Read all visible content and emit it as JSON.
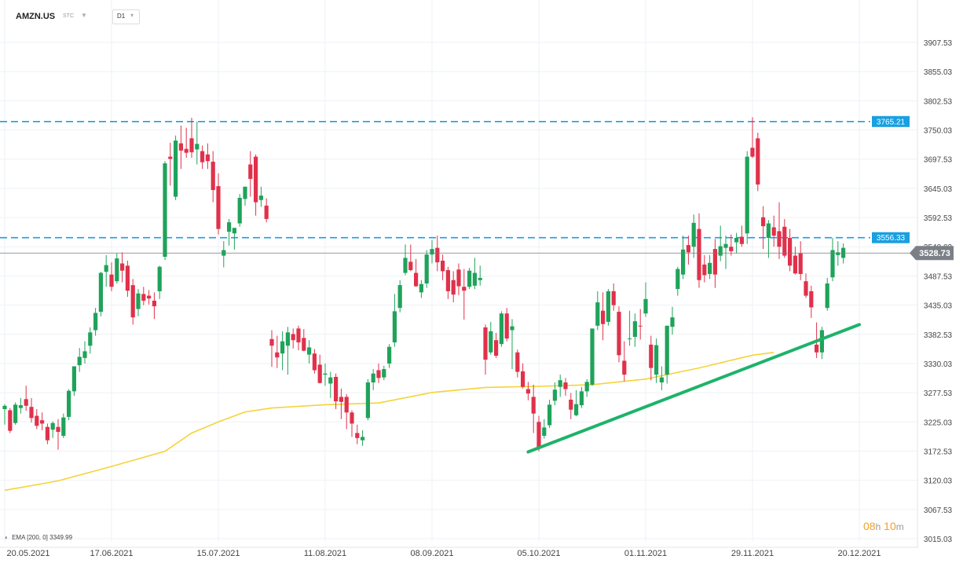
{
  "header": {
    "symbol": "AMZN.US",
    "symbol_type": "STC",
    "timeframe": "D1"
  },
  "indicator_legend": {
    "name": "EMA",
    "params": "[200, 0]",
    "value": "3349.99"
  },
  "countdown": {
    "hours": "08",
    "h_unit": "h",
    "minutes": "10",
    "m_unit": "m"
  },
  "colors": {
    "bull": "#1fa35a",
    "bear": "#e0314b",
    "ema": "#f5d338",
    "trendline": "#1db36a",
    "level": "#1a9fe0",
    "price_line": "#777777",
    "grid": "#eef1f4"
  },
  "chart_data": {
    "type": "candlestick",
    "y_range": [
      3015.03,
      3930
    ],
    "y_ticks": [
      "3907.53",
      "3855.03",
      "3802.53",
      "3750.03",
      "3697.53",
      "3645.03",
      "3592.53",
      "3540.03",
      "3487.53",
      "3435.03",
      "3382.53",
      "3330.03",
      "3277.53",
      "3225.03",
      "3172.53",
      "3120.03",
      "3067.53",
      "3015.03"
    ],
    "x_ticks": [
      "20.05.2021",
      "17.06.2021",
      "15.07.2021",
      "11.08.2021",
      "08.09.2021",
      "05.10.2021",
      "01.11.2021",
      "29.11.2021",
      "20.12.2021"
    ],
    "x_ticks_index": [
      0,
      20,
      40,
      60,
      80,
      100,
      120,
      140,
      160
    ],
    "current_price": {
      "label": "3528.73",
      "value": 3528.73
    },
    "levels": [
      {
        "label": "3765.21",
        "value": 3765.21
      },
      {
        "label": "3556.33",
        "value": 3556.33
      }
    ],
    "trendline": {
      "from": {
        "index": 98,
        "value": 3171
      },
      "to": {
        "index": 160,
        "value": 3400
      }
    },
    "ema_200": [
      {
        "i": 0,
        "v": 3102
      },
      {
        "i": 10,
        "v": 3119
      },
      {
        "i": 20,
        "v": 3145
      },
      {
        "i": 30,
        "v": 3172
      },
      {
        "i": 35,
        "v": 3205
      },
      {
        "i": 40,
        "v": 3225
      },
      {
        "i": 45,
        "v": 3243
      },
      {
        "i": 50,
        "v": 3250
      },
      {
        "i": 60,
        "v": 3256
      },
      {
        "i": 70,
        "v": 3259
      },
      {
        "i": 80,
        "v": 3278
      },
      {
        "i": 90,
        "v": 3287
      },
      {
        "i": 100,
        "v": 3289
      },
      {
        "i": 110,
        "v": 3292
      },
      {
        "i": 120,
        "v": 3302
      },
      {
        "i": 130,
        "v": 3322
      },
      {
        "i": 140,
        "v": 3345
      },
      {
        "i": 144,
        "v": 3350
      }
    ],
    "candles": [
      {
        "o": 3248,
        "h": 3257,
        "l": 3220,
        "c": 3254
      },
      {
        "o": 3246,
        "h": 3250,
        "l": 3205,
        "c": 3209
      },
      {
        "o": 3223,
        "h": 3260,
        "l": 3220,
        "c": 3256
      },
      {
        "o": 3250,
        "h": 3268,
        "l": 3240,
        "c": 3255
      },
      {
        "o": 3266,
        "h": 3290,
        "l": 3245,
        "c": 3254
      },
      {
        "o": 3252,
        "h": 3268,
        "l": 3224,
        "c": 3232
      },
      {
        "o": 3236,
        "h": 3248,
        "l": 3212,
        "c": 3218
      },
      {
        "o": 3228,
        "h": 3242,
        "l": 3210,
        "c": 3222
      },
      {
        "o": 3216,
        "h": 3222,
        "l": 3185,
        "c": 3192
      },
      {
        "o": 3211,
        "h": 3226,
        "l": 3196,
        "c": 3223
      },
      {
        "o": 3216,
        "h": 3230,
        "l": 3175,
        "c": 3207
      },
      {
        "o": 3200,
        "h": 3240,
        "l": 3196,
        "c": 3233
      },
      {
        "o": 3234,
        "h": 3284,
        "l": 3228,
        "c": 3281
      },
      {
        "o": 3280,
        "h": 3320,
        "l": 3272,
        "c": 3325
      },
      {
        "o": 3327,
        "h": 3358,
        "l": 3315,
        "c": 3342
      },
      {
        "o": 3340,
        "h": 3370,
        "l": 3330,
        "c": 3352
      },
      {
        "o": 3362,
        "h": 3395,
        "l": 3348,
        "c": 3386
      },
      {
        "o": 3390,
        "h": 3430,
        "l": 3380,
        "c": 3421
      },
      {
        "o": 3423,
        "h": 3495,
        "l": 3415,
        "c": 3493
      },
      {
        "o": 3495,
        "h": 3525,
        "l": 3468,
        "c": 3507
      },
      {
        "o": 3490,
        "h": 3512,
        "l": 3460,
        "c": 3468
      },
      {
        "o": 3478,
        "h": 3528,
        "l": 3474,
        "c": 3519
      },
      {
        "o": 3510,
        "h": 3530,
        "l": 3476,
        "c": 3497
      },
      {
        "o": 3506,
        "h": 3515,
        "l": 3450,
        "c": 3461
      },
      {
        "o": 3471,
        "h": 3482,
        "l": 3400,
        "c": 3413
      },
      {
        "o": 3428,
        "h": 3464,
        "l": 3415,
        "c": 3456
      },
      {
        "o": 3455,
        "h": 3468,
        "l": 3435,
        "c": 3443
      },
      {
        "o": 3452,
        "h": 3462,
        "l": 3436,
        "c": 3447
      },
      {
        "o": 3443,
        "h": 3458,
        "l": 3410,
        "c": 3433
      },
      {
        "o": 3460,
        "h": 3506,
        "l": 3446,
        "c": 3504
      },
      {
        "o": 3522,
        "h": 3694,
        "l": 3516,
        "c": 3690
      },
      {
        "o": 3702,
        "h": 3727,
        "l": 3650,
        "c": 3698
      },
      {
        "o": 3630,
        "h": 3740,
        "l": 3624,
        "c": 3731
      },
      {
        "o": 3726,
        "h": 3758,
        "l": 3680,
        "c": 3713
      },
      {
        "o": 3716,
        "h": 3754,
        "l": 3700,
        "c": 3709
      },
      {
        "o": 3735,
        "h": 3772,
        "l": 3700,
        "c": 3710
      },
      {
        "o": 3715,
        "h": 3765,
        "l": 3688,
        "c": 3725
      },
      {
        "o": 3712,
        "h": 3722,
        "l": 3680,
        "c": 3692
      },
      {
        "o": 3706,
        "h": 3726,
        "l": 3680,
        "c": 3694
      },
      {
        "o": 3693,
        "h": 3712,
        "l": 3620,
        "c": 3642
      },
      {
        "o": 3649,
        "h": 3672,
        "l": 3562,
        "c": 3572
      },
      {
        "o": 3524,
        "h": 3550,
        "l": 3503,
        "c": 3534
      },
      {
        "o": 3567,
        "h": 3590,
        "l": 3542,
        "c": 3584
      },
      {
        "o": 3564,
        "h": 3570,
        "l": 3535,
        "c": 3574
      },
      {
        "o": 3582,
        "h": 3635,
        "l": 3576,
        "c": 3628
      },
      {
        "o": 3626,
        "h": 3648,
        "l": 3614,
        "c": 3648
      },
      {
        "o": 3688,
        "h": 3712,
        "l": 3630,
        "c": 3662
      },
      {
        "o": 3702,
        "h": 3706,
        "l": 3596,
        "c": 3620
      },
      {
        "o": 3624,
        "h": 3648,
        "l": 3612,
        "c": 3632
      },
      {
        "o": 3614,
        "h": 3627,
        "l": 3584,
        "c": 3590
      },
      {
        "o": 3374,
        "h": 3390,
        "l": 3324,
        "c": 3362
      },
      {
        "o": 3350,
        "h": 3380,
        "l": 3322,
        "c": 3341
      },
      {
        "o": 3348,
        "h": 3388,
        "l": 3318,
        "c": 3370
      },
      {
        "o": 3362,
        "h": 3396,
        "l": 3310,
        "c": 3386
      },
      {
        "o": 3383,
        "h": 3393,
        "l": 3357,
        "c": 3372
      },
      {
        "o": 3393,
        "h": 3398,
        "l": 3354,
        "c": 3368
      },
      {
        "o": 3376,
        "h": 3392,
        "l": 3352,
        "c": 3353
      },
      {
        "o": 3346,
        "h": 3372,
        "l": 3330,
        "c": 3359
      },
      {
        "o": 3348,
        "h": 3356,
        "l": 3312,
        "c": 3318
      },
      {
        "o": 3328,
        "h": 3346,
        "l": 3294,
        "c": 3295
      },
      {
        "o": 3310,
        "h": 3330,
        "l": 3290,
        "c": 3312
      },
      {
        "o": 3294,
        "h": 3315,
        "l": 3268,
        "c": 3305
      },
      {
        "o": 3306,
        "h": 3312,
        "l": 3248,
        "c": 3262
      },
      {
        "o": 3270,
        "h": 3285,
        "l": 3230,
        "c": 3261
      },
      {
        "o": 3270,
        "h": 3275,
        "l": 3212,
        "c": 3242
      },
      {
        "o": 3242,
        "h": 3246,
        "l": 3198,
        "c": 3222
      },
      {
        "o": 3205,
        "h": 3220,
        "l": 3185,
        "c": 3196
      },
      {
        "o": 3192,
        "h": 3210,
        "l": 3182,
        "c": 3198
      },
      {
        "o": 3232,
        "h": 3302,
        "l": 3228,
        "c": 3296
      },
      {
        "o": 3296,
        "h": 3320,
        "l": 3282,
        "c": 3312
      },
      {
        "o": 3318,
        "h": 3330,
        "l": 3295,
        "c": 3304
      },
      {
        "o": 3305,
        "h": 3326,
        "l": 3300,
        "c": 3320
      },
      {
        "o": 3330,
        "h": 3365,
        "l": 3322,
        "c": 3360
      },
      {
        "o": 3368,
        "h": 3455,
        "l": 3360,
        "c": 3424
      },
      {
        "o": 3430,
        "h": 3480,
        "l": 3422,
        "c": 3471
      },
      {
        "o": 3493,
        "h": 3544,
        "l": 3489,
        "c": 3520
      },
      {
        "o": 3513,
        "h": 3544,
        "l": 3496,
        "c": 3498
      },
      {
        "o": 3493,
        "h": 3518,
        "l": 3468,
        "c": 3469
      },
      {
        "o": 3458,
        "h": 3480,
        "l": 3448,
        "c": 3473
      },
      {
        "o": 3474,
        "h": 3534,
        "l": 3466,
        "c": 3526
      },
      {
        "o": 3526,
        "h": 3552,
        "l": 3510,
        "c": 3536
      },
      {
        "o": 3538,
        "h": 3560,
        "l": 3496,
        "c": 3512
      },
      {
        "o": 3515,
        "h": 3526,
        "l": 3480,
        "c": 3496
      },
      {
        "o": 3498,
        "h": 3504,
        "l": 3446,
        "c": 3460
      },
      {
        "o": 3480,
        "h": 3496,
        "l": 3440,
        "c": 3454
      },
      {
        "o": 3499,
        "h": 3510,
        "l": 3453,
        "c": 3469
      },
      {
        "o": 3468,
        "h": 3500,
        "l": 3409,
        "c": 3461
      },
      {
        "o": 3468,
        "h": 3502,
        "l": 3464,
        "c": 3497
      },
      {
        "o": 3470,
        "h": 3520,
        "l": 3464,
        "c": 3493
      },
      {
        "o": 3480,
        "h": 3506,
        "l": 3470,
        "c": 3484
      },
      {
        "o": 3395,
        "h": 3400,
        "l": 3310,
        "c": 3337
      },
      {
        "o": 3350,
        "h": 3405,
        "l": 3346,
        "c": 3388
      },
      {
        "o": 3372,
        "h": 3385,
        "l": 3340,
        "c": 3344
      },
      {
        "o": 3365,
        "h": 3424,
        "l": 3360,
        "c": 3420
      },
      {
        "o": 3420,
        "h": 3430,
        "l": 3370,
        "c": 3375
      },
      {
        "o": 3390,
        "h": 3410,
        "l": 3320,
        "c": 3397
      },
      {
        "o": 3350,
        "h": 3355,
        "l": 3305,
        "c": 3315
      },
      {
        "o": 3316,
        "h": 3330,
        "l": 3285,
        "c": 3288
      },
      {
        "o": 3284,
        "h": 3297,
        "l": 3264,
        "c": 3276
      },
      {
        "o": 3270,
        "h": 3292,
        "l": 3205,
        "c": 3240
      },
      {
        "o": 3225,
        "h": 3236,
        "l": 3172,
        "c": 3178
      },
      {
        "o": 3200,
        "h": 3230,
        "l": 3195,
        "c": 3215
      },
      {
        "o": 3219,
        "h": 3265,
        "l": 3214,
        "c": 3256
      },
      {
        "o": 3263,
        "h": 3296,
        "l": 3255,
        "c": 3283
      },
      {
        "o": 3288,
        "h": 3310,
        "l": 3270,
        "c": 3300
      },
      {
        "o": 3296,
        "h": 3304,
        "l": 3272,
        "c": 3284
      },
      {
        "o": 3265,
        "h": 3277,
        "l": 3230,
        "c": 3247
      },
      {
        "o": 3237,
        "h": 3282,
        "l": 3235,
        "c": 3257
      },
      {
        "o": 3255,
        "h": 3288,
        "l": 3250,
        "c": 3280
      },
      {
        "o": 3280,
        "h": 3302,
        "l": 3270,
        "c": 3297
      },
      {
        "o": 3292,
        "h": 3390,
        "l": 3290,
        "c": 3393
      },
      {
        "o": 3398,
        "h": 3460,
        "l": 3390,
        "c": 3440
      },
      {
        "o": 3425,
        "h": 3458,
        "l": 3372,
        "c": 3401
      },
      {
        "o": 3405,
        "h": 3464,
        "l": 3398,
        "c": 3460
      },
      {
        "o": 3460,
        "h": 3474,
        "l": 3425,
        "c": 3435
      },
      {
        "o": 3423,
        "h": 3433,
        "l": 3332,
        "c": 3345
      },
      {
        "o": 3335,
        "h": 3370,
        "l": 3298,
        "c": 3310
      },
      {
        "o": 3374,
        "h": 3425,
        "l": 3362,
        "c": 3375
      },
      {
        "o": 3378,
        "h": 3420,
        "l": 3360,
        "c": 3406
      },
      {
        "o": 3398,
        "h": 3428,
        "l": 3373,
        "c": 3397
      },
      {
        "o": 3420,
        "h": 3476,
        "l": 3414,
        "c": 3446
      },
      {
        "o": 3364,
        "h": 3380,
        "l": 3300,
        "c": 3322
      },
      {
        "o": 3310,
        "h": 3375,
        "l": 3295,
        "c": 3363
      },
      {
        "o": 3296,
        "h": 3325,
        "l": 3282,
        "c": 3305
      },
      {
        "o": 3310,
        "h": 3398,
        "l": 3294,
        "c": 3398
      },
      {
        "o": 3396,
        "h": 3432,
        "l": 3382,
        "c": 3413
      },
      {
        "o": 3464,
        "h": 3504,
        "l": 3452,
        "c": 3500
      },
      {
        "o": 3490,
        "h": 3560,
        "l": 3482,
        "c": 3535
      },
      {
        "o": 3543,
        "h": 3560,
        "l": 3508,
        "c": 3530
      },
      {
        "o": 3540,
        "h": 3598,
        "l": 3520,
        "c": 3583
      },
      {
        "o": 3572,
        "h": 3600,
        "l": 3466,
        "c": 3480
      },
      {
        "o": 3508,
        "h": 3525,
        "l": 3476,
        "c": 3489
      },
      {
        "o": 3491,
        "h": 3525,
        "l": 3482,
        "c": 3511
      },
      {
        "o": 3536,
        "h": 3554,
        "l": 3466,
        "c": 3490
      },
      {
        "o": 3524,
        "h": 3578,
        "l": 3514,
        "c": 3541
      },
      {
        "o": 3538,
        "h": 3560,
        "l": 3500,
        "c": 3545
      },
      {
        "o": 3540,
        "h": 3562,
        "l": 3524,
        "c": 3532
      },
      {
        "o": 3548,
        "h": 3565,
        "l": 3528,
        "c": 3556
      },
      {
        "o": 3558,
        "h": 3578,
        "l": 3540,
        "c": 3545
      },
      {
        "o": 3564,
        "h": 3712,
        "l": 3545,
        "c": 3702
      },
      {
        "o": 3718,
        "h": 3773,
        "l": 3700,
        "c": 3702
      },
      {
        "o": 3735,
        "h": 3745,
        "l": 3640,
        "c": 3652
      },
      {
        "o": 3593,
        "h": 3613,
        "l": 3536,
        "c": 3577
      },
      {
        "o": 3556,
        "h": 3588,
        "l": 3520,
        "c": 3582
      },
      {
        "o": 3575,
        "h": 3596,
        "l": 3540,
        "c": 3560
      },
      {
        "o": 3568,
        "h": 3620,
        "l": 3518,
        "c": 3540
      },
      {
        "o": 3576,
        "h": 3590,
        "l": 3520,
        "c": 3524
      },
      {
        "o": 3556,
        "h": 3572,
        "l": 3496,
        "c": 3506
      },
      {
        "o": 3524,
        "h": 3540,
        "l": 3490,
        "c": 3492
      },
      {
        "o": 3528,
        "h": 3550,
        "l": 3480,
        "c": 3491
      },
      {
        "o": 3478,
        "h": 3492,
        "l": 3448,
        "c": 3452
      },
      {
        "o": 3460,
        "h": 3470,
        "l": 3412,
        "c": 3431
      },
      {
        "o": 3364,
        "h": 3404,
        "l": 3340,
        "c": 3350
      },
      {
        "o": 3350,
        "h": 3396,
        "l": 3338,
        "c": 3390
      },
      {
        "o": 3430,
        "h": 3484,
        "l": 3425,
        "c": 3474
      },
      {
        "o": 3485,
        "h": 3556,
        "l": 3478,
        "c": 3534
      },
      {
        "o": 3525,
        "h": 3550,
        "l": 3506,
        "c": 3530
      },
      {
        "o": 3520,
        "h": 3546,
        "l": 3510,
        "c": 3538
      }
    ]
  },
  "empty_area_note_unused": null
}
